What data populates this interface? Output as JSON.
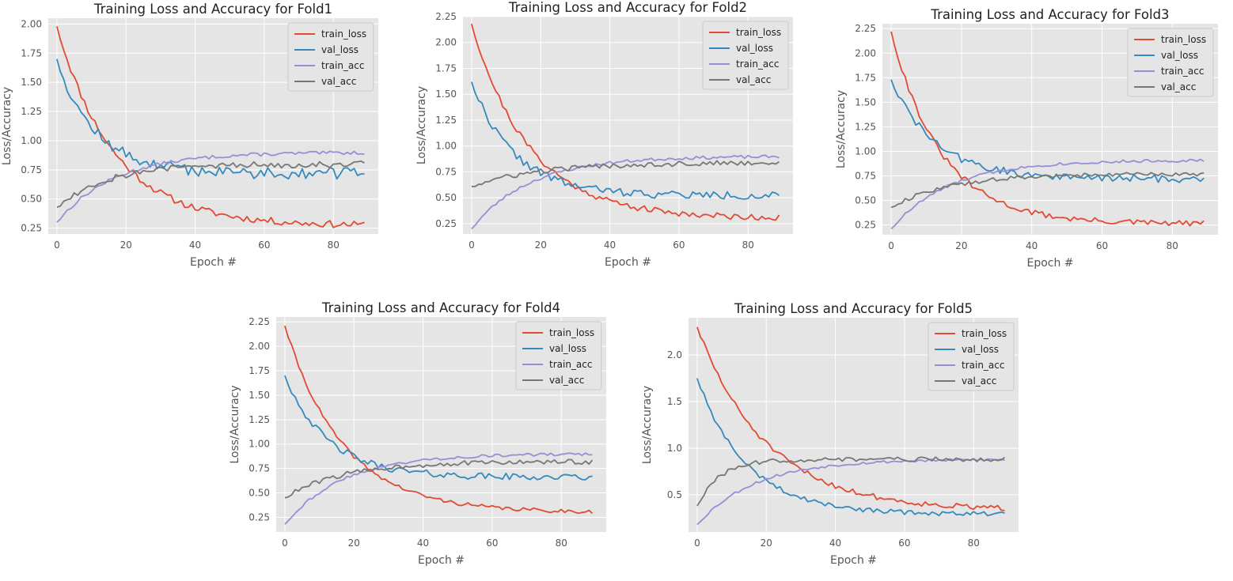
{
  "chart_data": [
    {
      "type": "line",
      "title": "Training Loss and Accuracy for Fold1",
      "xlabel": "Epoch #",
      "ylabel": "Loss/Accuracy",
      "xlim": [
        -2.5,
        93
      ],
      "ylim": [
        0.2,
        2.05
      ],
      "xticks": [
        0,
        20,
        40,
        60,
        80
      ],
      "yticks": [
        0.25,
        0.5,
        0.75,
        1.0,
        1.25,
        1.5,
        1.75,
        2.0
      ],
      "ytick_labels": [
        "0.25",
        "0.50",
        "0.75",
        "1.00",
        "1.25",
        "1.50",
        "1.75",
        "2.00"
      ],
      "grid": true,
      "legend": "top-right",
      "series": [
        {
          "name": "train_loss",
          "color": "#E24A33",
          "start": 1.98,
          "end": 0.27,
          "noise": 0.03,
          "k": 0.06,
          "seed": 11
        },
        {
          "name": "val_loss",
          "color": "#348ABD",
          "start": 1.7,
          "end": 0.72,
          "noise": 0.05,
          "k": 0.09,
          "seed": 12
        },
        {
          "name": "train_acc",
          "color": "#988ED5",
          "start": 0.3,
          "end": 0.9,
          "noise": 0.015,
          "k": 0.06,
          "seed": 13
        },
        {
          "name": "val_acc",
          "color": "#777777",
          "start": 0.43,
          "end": 0.8,
          "noise": 0.03,
          "k": 0.07,
          "seed": 14
        }
      ]
    },
    {
      "type": "line",
      "title": "Training Loss and Accuracy for Fold2",
      "xlabel": "Epoch #",
      "ylabel": "Loss/Accuracy",
      "xlim": [
        -2.5,
        93
      ],
      "ylim": [
        0.15,
        2.25
      ],
      "xticks": [
        0,
        20,
        40,
        60,
        80
      ],
      "yticks": [
        0.25,
        0.5,
        0.75,
        1.0,
        1.25,
        1.5,
        1.75,
        2.0,
        2.25
      ],
      "ytick_labels": [
        "0.25",
        "0.50",
        "0.75",
        "1.00",
        "1.25",
        "1.50",
        "1.75",
        "2.00",
        "2.25"
      ],
      "grid": true,
      "legend": "top-right",
      "series": [
        {
          "name": "train_loss",
          "color": "#E24A33",
          "start": 2.18,
          "end": 0.3,
          "noise": 0.03,
          "k": 0.06,
          "seed": 21
        },
        {
          "name": "val_loss",
          "color": "#348ABD",
          "start": 1.62,
          "end": 0.52,
          "noise": 0.04,
          "k": 0.08,
          "seed": 22
        },
        {
          "name": "train_acc",
          "color": "#988ED5",
          "start": 0.2,
          "end": 0.9,
          "noise": 0.015,
          "k": 0.06,
          "seed": 23
        },
        {
          "name": "val_acc",
          "color": "#777777",
          "start": 0.61,
          "end": 0.84,
          "noise": 0.025,
          "k": 0.05,
          "seed": 24
        }
      ]
    },
    {
      "type": "line",
      "title": "Training Loss and Accuracy for Fold3",
      "xlabel": "Epoch #",
      "ylabel": "Loss/Accuracy",
      "xlim": [
        -2.5,
        93
      ],
      "ylim": [
        0.15,
        2.3
      ],
      "xticks": [
        0,
        20,
        40,
        60,
        80
      ],
      "yticks": [
        0.25,
        0.5,
        0.75,
        1.0,
        1.25,
        1.5,
        1.75,
        2.0,
        2.25
      ],
      "ytick_labels": [
        "0.25",
        "0.50",
        "0.75",
        "1.00",
        "1.25",
        "1.50",
        "1.75",
        "2.00",
        "2.25"
      ],
      "grid": true,
      "legend": "top-right",
      "series": [
        {
          "name": "train_loss",
          "color": "#E24A33",
          "start": 2.22,
          "end": 0.26,
          "noise": 0.03,
          "k": 0.07,
          "seed": 31
        },
        {
          "name": "val_loss",
          "color": "#348ABD",
          "start": 1.73,
          "end": 0.72,
          "noise": 0.04,
          "k": 0.08,
          "seed": 32
        },
        {
          "name": "train_acc",
          "color": "#988ED5",
          "start": 0.21,
          "end": 0.91,
          "noise": 0.015,
          "k": 0.06,
          "seed": 33
        },
        {
          "name": "val_acc",
          "color": "#777777",
          "start": 0.43,
          "end": 0.77,
          "noise": 0.02,
          "k": 0.06,
          "seed": 34
        }
      ]
    },
    {
      "type": "line",
      "title": "Training Loss and Accuracy for Fold4",
      "xlabel": "Epoch #",
      "ylabel": "Loss/Accuracy",
      "xlim": [
        -2.5,
        93
      ],
      "ylim": [
        0.1,
        2.3
      ],
      "xticks": [
        0,
        20,
        40,
        60,
        80
      ],
      "yticks": [
        0.25,
        0.5,
        0.75,
        1.0,
        1.25,
        1.5,
        1.75,
        2.0,
        2.25
      ],
      "ytick_labels": [
        "0.25",
        "0.50",
        "0.75",
        "1.00",
        "1.25",
        "1.50",
        "1.75",
        "2.00",
        "2.25"
      ],
      "grid": true,
      "legend": "top-right",
      "series": [
        {
          "name": "train_loss",
          "color": "#E24A33",
          "start": 2.21,
          "end": 0.3,
          "noise": 0.02,
          "k": 0.06,
          "seed": 41
        },
        {
          "name": "val_loss",
          "color": "#348ABD",
          "start": 1.7,
          "end": 0.66,
          "noise": 0.035,
          "k": 0.08,
          "seed": 42
        },
        {
          "name": "train_acc",
          "color": "#988ED5",
          "start": 0.18,
          "end": 0.9,
          "noise": 0.015,
          "k": 0.06,
          "seed": 43
        },
        {
          "name": "val_acc",
          "color": "#777777",
          "start": 0.45,
          "end": 0.82,
          "noise": 0.025,
          "k": 0.06,
          "seed": 44
        }
      ]
    },
    {
      "type": "line",
      "title": "Training Loss and Accuracy for Fold5",
      "xlabel": "Epoch #",
      "ylabel": "Loss/Accuracy",
      "xlim": [
        -2.5,
        93
      ],
      "ylim": [
        0.1,
        2.4
      ],
      "xticks": [
        0,
        20,
        40,
        60,
        80
      ],
      "yticks": [
        0.5,
        1.0,
        1.5,
        2.0
      ],
      "ytick_labels": [
        "0.5",
        "1.0",
        "1.5",
        "2.0"
      ],
      "grid": true,
      "legend": "top-right",
      "series": [
        {
          "name": "train_loss",
          "color": "#E24A33",
          "start": 2.3,
          "end": 0.33,
          "noise": 0.03,
          "k": 0.05,
          "seed": 51
        },
        {
          "name": "val_loss",
          "color": "#348ABD",
          "start": 1.75,
          "end": 0.29,
          "noise": 0.025,
          "k": 0.07,
          "seed": 52
        },
        {
          "name": "train_acc",
          "color": "#988ED5",
          "start": 0.18,
          "end": 0.88,
          "noise": 0.015,
          "k": 0.06,
          "seed": 53
        },
        {
          "name": "val_acc",
          "color": "#777777",
          "start": 0.38,
          "end": 0.88,
          "noise": 0.025,
          "k": 0.15,
          "seed": 54
        }
      ]
    }
  ]
}
